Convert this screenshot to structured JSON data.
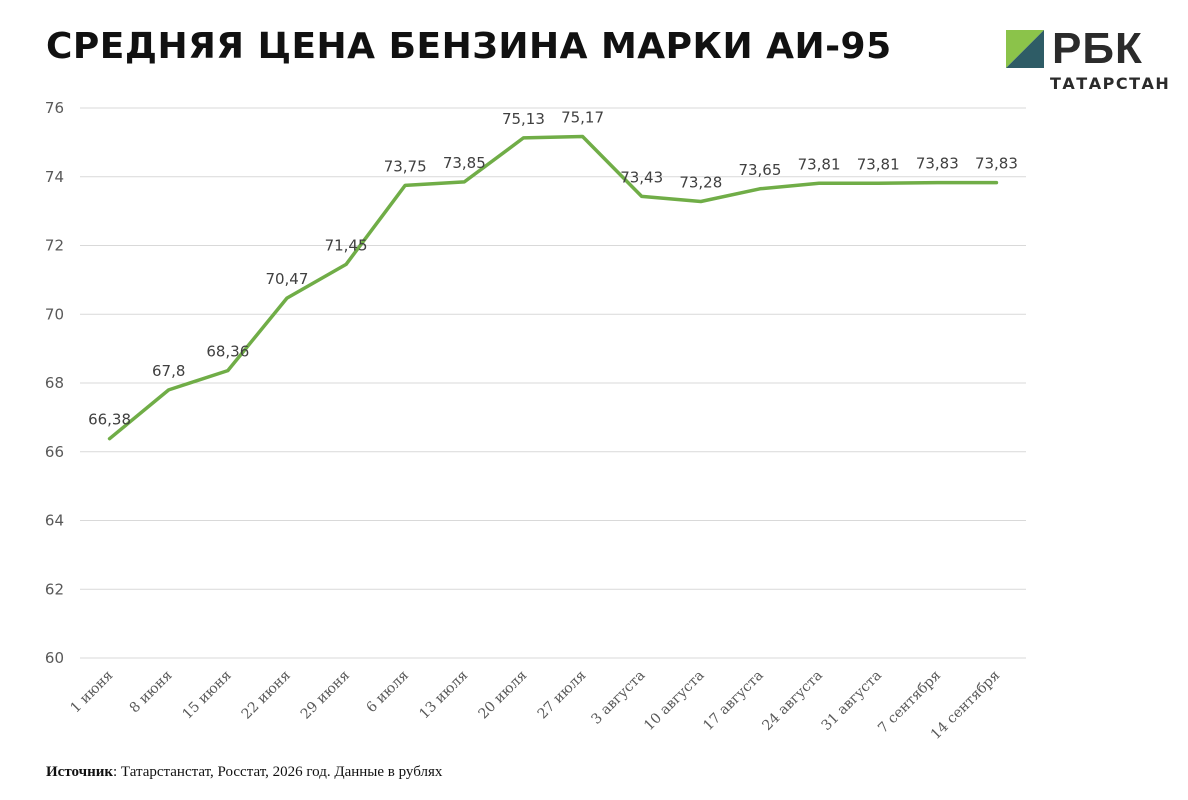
{
  "title": "СРЕДНЯЯ ЦЕНА БЕНЗИНА МАРКИ АИ-95",
  "logo": {
    "text": "РБК",
    "subtitle": "ТАТАРСТАН",
    "colors": [
      "#8bc34a",
      "#2e5c66"
    ]
  },
  "source": {
    "label": "Источник",
    "text": ": Татарстанстат, Росстат, 2026 год. Данные в рублях"
  },
  "chart_data": {
    "type": "line",
    "title": "СРЕДНЯЯ ЦЕНА БЕНЗИНА МАРКИ АИ-95",
    "xlabel": "",
    "ylabel": "",
    "categories": [
      "1 июня",
      "8 июня",
      "15 июня",
      "22 июня",
      "29 июня",
      "6 июля",
      "13 июля",
      "20 июля",
      "27 июля",
      "3 августа",
      "10 августа",
      "17 августа",
      "24 августа",
      "31 августа",
      "7 сентября",
      "14 сентября"
    ],
    "series": [
      {
        "values": [
          66.38,
          67.8,
          68.36,
          70.47,
          71.45,
          73.75,
          73.85,
          75.13,
          75.17,
          73.43,
          73.28,
          73.65,
          73.81,
          73.81,
          73.83,
          73.83
        ],
        "labels": [
          "66,38",
          "67,8",
          "68,36",
          "70,47",
          "71,45",
          "73,75",
          "73,85",
          "75,13",
          "75,17",
          "73,43",
          "73,28",
          "73,65",
          "73,81",
          "73,81",
          "73,83",
          "73,83"
        ],
        "color": "#70ad47"
      }
    ],
    "ylim": [
      60,
      76
    ],
    "yticks": [
      60,
      62,
      64,
      66,
      68,
      70,
      72,
      74,
      76
    ],
    "grid": true,
    "legend": "none"
  }
}
